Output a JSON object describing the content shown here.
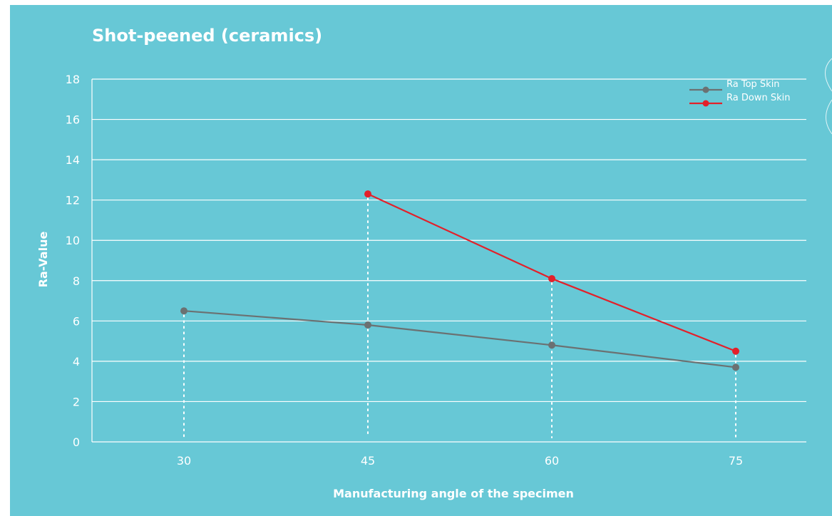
{
  "chart_data": {
    "type": "line",
    "title": "Shot-peened (ceramics)",
    "xlabel": "Manufacturing angle of the specimen",
    "ylabel": "Ra-Value",
    "categories": [
      "30",
      "45",
      "60",
      "75"
    ],
    "ylim": [
      0,
      18
    ],
    "yticks": [
      "0",
      "2",
      "4",
      "6",
      "8",
      "10",
      "12",
      "14",
      "16",
      "18"
    ],
    "grid": "horizontal",
    "legend_position": "top-right",
    "series": [
      {
        "name": "Ra Top Skin",
        "color": "#6b7172",
        "values": [
          6.5,
          5.8,
          4.8,
          3.7
        ]
      },
      {
        "name": "Ra Down Skin",
        "color": "#e3202a",
        "values": [
          null,
          12.3,
          8.1,
          4.5
        ]
      }
    ],
    "colors": {
      "background": "#67c8d6",
      "grid": "#ffffff",
      "text": "#ffffff",
      "dropline": "#ffffff"
    }
  }
}
